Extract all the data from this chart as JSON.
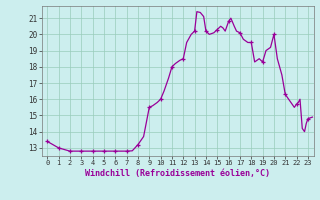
{
  "line_color": "#990099",
  "marker_color": "#990099",
  "bg_color": "#cceeee",
  "grid_color": "#99ccbb",
  "xlabel": "Windchill (Refroidissement éolien,°C)",
  "ylim": [
    12.5,
    21.75
  ],
  "xlim": [
    -0.5,
    23.5
  ],
  "yticks": [
    13,
    14,
    15,
    16,
    17,
    18,
    19,
    20,
    21
  ],
  "xticks": [
    0,
    1,
    2,
    3,
    4,
    5,
    6,
    7,
    8,
    9,
    10,
    11,
    12,
    13,
    14,
    15,
    16,
    17,
    18,
    19,
    20,
    21,
    22,
    23
  ],
  "detailed_hours": [
    0,
    1,
    2,
    3,
    4,
    5,
    6,
    7,
    7.5,
    8,
    8.5,
    9,
    9.3,
    9.7,
    10,
    10.3,
    10.7,
    11,
    11.3,
    11.7,
    12,
    12.3,
    12.7,
    13,
    13.2,
    13.5,
    13.8,
    14,
    14.3,
    14.7,
    15,
    15.3,
    15.5,
    15.7,
    16,
    16.2,
    16.5,
    16.7,
    17,
    17.3,
    17.7,
    18,
    18.3,
    18.7,
    19,
    19.3,
    19.7,
    20,
    20.3,
    20.7,
    21,
    21.3,
    21.8,
    22.0,
    22.15,
    22.3,
    22.5,
    22.7,
    22.85,
    23.0,
    23.2,
    23.4
  ],
  "detailed_values": [
    13.4,
    13.0,
    12.8,
    12.8,
    12.8,
    12.8,
    12.8,
    12.8,
    12.82,
    13.2,
    13.7,
    15.5,
    15.6,
    15.8,
    16.0,
    16.5,
    17.3,
    18.0,
    18.2,
    18.4,
    18.5,
    19.5,
    20.0,
    20.2,
    21.4,
    21.35,
    21.1,
    20.2,
    20.0,
    20.1,
    20.3,
    20.5,
    20.4,
    20.2,
    20.8,
    21.0,
    20.5,
    20.2,
    20.1,
    19.7,
    19.5,
    19.5,
    18.3,
    18.5,
    18.3,
    19.0,
    19.2,
    20.0,
    18.5,
    17.5,
    16.3,
    16.0,
    15.5,
    15.7,
    15.8,
    16.0,
    14.2,
    14.0,
    14.5,
    14.8,
    14.85,
    14.9
  ],
  "marker_hours": [
    0,
    1,
    2,
    3,
    4,
    5,
    6,
    7,
    8,
    9,
    10,
    11,
    12,
    13,
    14,
    15,
    16,
    17,
    18,
    19,
    20,
    21,
    22,
    23
  ],
  "marker_values": [
    13.4,
    13.0,
    12.8,
    12.8,
    12.8,
    12.8,
    12.8,
    12.8,
    13.2,
    15.5,
    16.0,
    18.0,
    18.5,
    20.2,
    20.2,
    20.3,
    20.8,
    20.1,
    19.5,
    18.3,
    20.0,
    16.3,
    15.7,
    14.8
  ]
}
